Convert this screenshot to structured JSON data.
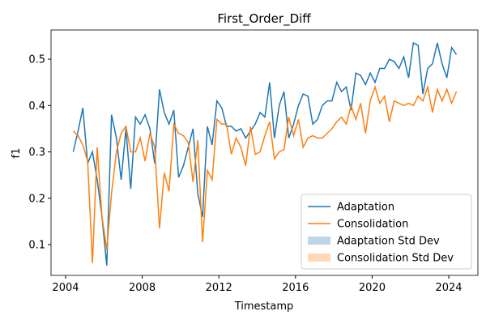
{
  "chart_data": {
    "type": "line",
    "title": "First_Order_Diff",
    "xlabel": "Timestamp",
    "ylabel": "f1",
    "x": [
      2004.4,
      2004.65,
      2004.9,
      2005.15,
      2005.4,
      2005.65,
      2005.9,
      2006.15,
      2006.4,
      2006.65,
      2006.9,
      2007.15,
      2007.4,
      2007.65,
      2007.9,
      2008.15,
      2008.4,
      2008.65,
      2008.9,
      2009.15,
      2009.4,
      2009.65,
      2009.9,
      2010.15,
      2010.4,
      2010.65,
      2010.9,
      2011.15,
      2011.4,
      2011.65,
      2011.9,
      2012.15,
      2012.4,
      2012.65,
      2012.9,
      2013.15,
      2013.4,
      2013.65,
      2013.9,
      2014.15,
      2014.4,
      2014.65,
      2014.9,
      2015.15,
      2015.4,
      2015.65,
      2015.9,
      2016.15,
      2016.4,
      2016.65,
      2016.9,
      2017.15,
      2017.4,
      2017.65,
      2017.9,
      2018.15,
      2018.4,
      2018.65,
      2018.9,
      2019.15,
      2019.4,
      2019.65,
      2019.9,
      2020.15,
      2020.4,
      2020.65,
      2020.9,
      2021.15,
      2021.4,
      2021.65,
      2021.9,
      2022.15,
      2022.4,
      2022.65,
      2022.9,
      2023.15,
      2023.4,
      2023.65,
      2023.9,
      2024.15,
      2024.4
    ],
    "series": [
      {
        "name": "Adaptation",
        "color": "#1f77b4",
        "values": [
          0.3,
          0.345,
          0.395,
          0.275,
          0.3,
          0.24,
          0.16,
          0.055,
          0.38,
          0.33,
          0.24,
          0.35,
          0.22,
          0.375,
          0.36,
          0.38,
          0.35,
          0.275,
          0.435,
          0.385,
          0.36,
          0.39,
          0.245,
          0.27,
          0.31,
          0.35,
          0.21,
          0.16,
          0.355,
          0.315,
          0.41,
          0.395,
          0.355,
          0.355,
          0.345,
          0.35,
          0.33,
          0.345,
          0.36,
          0.385,
          0.375,
          0.45,
          0.33,
          0.4,
          0.43,
          0.33,
          0.36,
          0.4,
          0.425,
          0.42,
          0.36,
          0.37,
          0.4,
          0.41,
          0.41,
          0.45,
          0.43,
          0.44,
          0.39,
          0.47,
          0.465,
          0.445,
          0.47,
          0.45,
          0.48,
          0.48,
          0.5,
          0.495,
          0.48,
          0.505,
          0.46,
          0.535,
          0.53,
          0.425,
          0.48,
          0.49,
          0.535,
          0.49,
          0.46,
          0.525,
          0.51
        ]
      },
      {
        "name": "Consolidation",
        "color": "#ff7f0e",
        "values": [
          0.345,
          0.335,
          0.315,
          0.28,
          0.06,
          0.31,
          0.16,
          0.09,
          0.21,
          0.3,
          0.34,
          0.355,
          0.3,
          0.3,
          0.33,
          0.28,
          0.34,
          0.31,
          0.135,
          0.255,
          0.215,
          0.36,
          0.34,
          0.335,
          0.32,
          0.235,
          0.325,
          0.105,
          0.26,
          0.24,
          0.37,
          0.36,
          0.36,
          0.295,
          0.33,
          0.31,
          0.27,
          0.355,
          0.295,
          0.3,
          0.335,
          0.365,
          0.285,
          0.3,
          0.305,
          0.375,
          0.335,
          0.37,
          0.31,
          0.33,
          0.335,
          0.33,
          0.33,
          0.34,
          0.35,
          0.365,
          0.375,
          0.36,
          0.4,
          0.37,
          0.405,
          0.34,
          0.41,
          0.44,
          0.405,
          0.42,
          0.365,
          0.41,
          0.405,
          0.4,
          0.405,
          0.4,
          0.42,
          0.41,
          0.44,
          0.385,
          0.435,
          0.41,
          0.435,
          0.405,
          0.43
        ]
      }
    ],
    "bands": [
      {
        "name": "Adaptation Std Dev",
        "color": "#1f77b4"
      },
      {
        "name": "Consolidation Std Dev",
        "color": "#ff7f0e"
      }
    ],
    "xlim": [
      2003.24,
      2025.52
    ],
    "xticks": [
      2004,
      2008,
      2012,
      2016,
      2020,
      2024
    ],
    "ylim": [
      0.0336,
      0.563
    ],
    "yticks": [
      0.1,
      0.2,
      0.3,
      0.4,
      0.5
    ],
    "legend": "lower right"
  }
}
